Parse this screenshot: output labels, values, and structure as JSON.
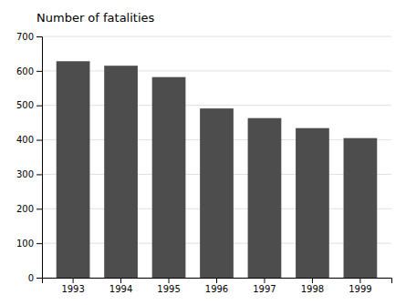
{
  "chart_data": {
    "type": "bar",
    "ylabel": "Number of fatalities",
    "categories": [
      "1993",
      "1994",
      "1995",
      "1996",
      "1997",
      "1998",
      "1999"
    ],
    "values": [
      628,
      615,
      582,
      491,
      463,
      434,
      405
    ],
    "color": "#4d4d4d",
    "ylim": [
      0,
      700
    ],
    "yticks": [
      0,
      100,
      200,
      300,
      400,
      500,
      600,
      700
    ],
    "grid": true
  }
}
